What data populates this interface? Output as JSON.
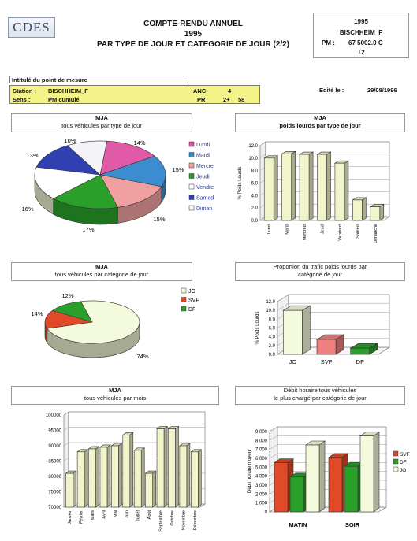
{
  "header": {
    "logo": "CDES",
    "title_line1": "COMPTE-RENDU ANNUEL",
    "title_line2": "1995",
    "title_line3": "PAR TYPE DE JOUR ET CATEGORIE DE JOUR (2/2)"
  },
  "id_box": {
    "year": "1995",
    "station": "BISCHHEIM_F",
    "pm_label": "PM :",
    "pm_value": "67 5002.0 C",
    "code": "T2"
  },
  "measure_point": {
    "heading": "Intitulé du point de mesure",
    "station_label": "Station :",
    "station_value": "BISCHHEIM_F",
    "anc_label": "ANC",
    "anc_value": "4",
    "sens_label": "Sens :",
    "sens_value": "PM cumulé",
    "pr_label": "PR",
    "pr_value": "2+",
    "pr_value2": "58",
    "edited_label": "Edité le :",
    "edited_date": "29/08/1996"
  },
  "chart_titles": {
    "c1_l1": "MJA",
    "c1_l2": "tous véhicules par type de jour",
    "c2_l1": "MJA",
    "c2_l2": "poids lourds par type de jour",
    "c3_l1": "MJA",
    "c3_l2": "tous véhicules par catégorie de jour",
    "c4_l1": "Proportion du trafic poids lourds par",
    "c4_l2": "catégorie de jour",
    "c5_l1": "MJA",
    "c5_l2": "tous véhicules par mois",
    "c6_l1": "Débit horaire tous véhicules",
    "c6_l2": "le plus chargé par catégorie de jour"
  },
  "chart_data": [
    {
      "type": "pie",
      "categories": [
        "Lundi",
        "Mardi",
        "Mercredi",
        "Jeudi",
        "Vendredi",
        "Samedi",
        "Dimanche"
      ],
      "legend_labels": [
        "Lundi",
        "Mardi",
        "Mercre",
        "Jeudi",
        "Vendre",
        "Samed",
        "Diman"
      ],
      "values": [
        14,
        15,
        15,
        17,
        16,
        13,
        10
      ],
      "labels": [
        "14%",
        "15%",
        "15%",
        "17%",
        "16%",
        "13%",
        "10%"
      ],
      "colors": [
        "#e05aa8",
        "#3c8cd0",
        "#f0a0a0",
        "#2aa02a",
        "#ffffff",
        "#3040b0",
        "#f4f4f8"
      ],
      "legend": "right"
    },
    {
      "type": "bar",
      "categories": [
        "Lundi",
        "Mardi",
        "Mercredi",
        "Jeudi",
        "Vendredi",
        "Samedi",
        "Dimanche"
      ],
      "values": [
        10.0,
        10.7,
        10.6,
        10.6,
        9.2,
        3.3,
        2.2
      ],
      "ylabel": "% Poids Lourds",
      "ylim": [
        0,
        12
      ],
      "yticks": [
        "0.0",
        "2.0",
        "4.0",
        "6.0",
        "8.0",
        "10.0",
        "12.0"
      ],
      "color": "#f2f4cc"
    },
    {
      "type": "pie",
      "categories": [
        "JO",
        "SVF",
        "DF"
      ],
      "values": [
        74,
        14,
        12
      ],
      "labels": [
        "74%",
        "14%",
        "12%"
      ],
      "colors": [
        "#f4fadc",
        "#e04a28",
        "#2aa02a"
      ],
      "legend": "right"
    },
    {
      "type": "bar",
      "categories": [
        "JO",
        "SVF",
        "DF"
      ],
      "values": [
        10.0,
        3.4,
        1.4
      ],
      "ylabel": "% Poids Lourds",
      "ylim": [
        0,
        12
      ],
      "yticks": [
        "0.0",
        "2.0",
        "4.0",
        "6.0",
        "8.0",
        "10.0",
        "12.0"
      ],
      "colors": [
        "#f4fadc",
        "#f08080",
        "#2aa02a"
      ]
    },
    {
      "type": "bar",
      "categories": [
        "Janvier",
        "Février",
        "Mars",
        "Avril",
        "Mai",
        "Juin",
        "Juillet",
        "Août",
        "Septembre",
        "Octobre",
        "Novembre",
        "Décembre"
      ],
      "values": [
        81000,
        88000,
        89000,
        89500,
        90000,
        93500,
        88500,
        81000,
        95500,
        95500,
        90000,
        88000
      ],
      "ylim": [
        70000,
        100000
      ],
      "yticks": [
        "70000",
        "75000",
        "80000",
        "85000",
        "90000",
        "95000",
        "100000"
      ],
      "color": "#f2f4cc"
    },
    {
      "type": "bar",
      "categories": [
        "MATIN",
        "SOIR"
      ],
      "series": [
        {
          "name": "SVF",
          "values": [
            5500,
            6100
          ],
          "color": "#e04a28"
        },
        {
          "name": "DF",
          "values": [
            3900,
            5100
          ],
          "color": "#2aa02a"
        },
        {
          "name": "JO",
          "values": [
            7500,
            8500
          ],
          "color": "#f4fadc"
        }
      ],
      "ylabel": "Débit horaire moyen",
      "ylim": [
        0,
        9000
      ],
      "yticks": [
        "0",
        "1 000",
        "2 000",
        "3 000",
        "4 000",
        "5 000",
        "6 000",
        "7 000",
        "8 000",
        "9 000"
      ],
      "legend": "right"
    }
  ]
}
